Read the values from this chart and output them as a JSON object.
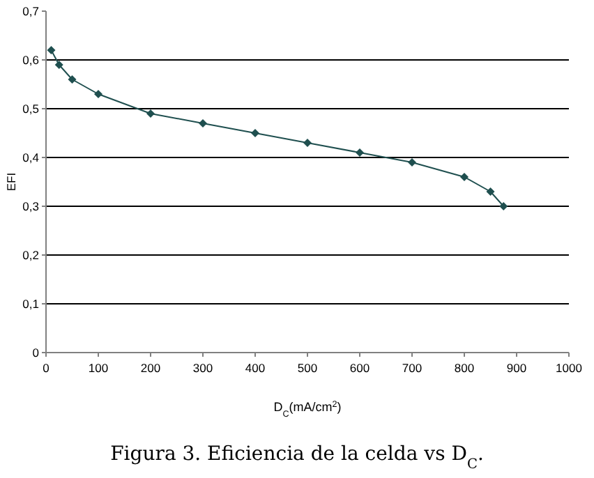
{
  "chart_data": {
    "type": "line",
    "xlabel": "D$_{C}$(mA/cm$^{2}$)",
    "ylabel": "EFI",
    "x": [
      10,
      25,
      50,
      100,
      200,
      300,
      400,
      500,
      600,
      700,
      800,
      850,
      875
    ],
    "series": [
      {
        "color": "#1f4f4f",
        "values": [
          0.62,
          0.59,
          0.56,
          0.53,
          0.49,
          0.47,
          0.45,
          0.43,
          0.41,
          0.39,
          0.36,
          0.33,
          0.3
        ]
      }
    ],
    "xlim": [
      0,
      1000
    ],
    "xticks": [
      0,
      100,
      200,
      300,
      400,
      500,
      600,
      700,
      800,
      900,
      1000
    ],
    "ylim": [
      0,
      0.7
    ],
    "yticks": [
      0,
      {
        "value": 0.1,
        "label": "0,1"
      },
      {
        "value": 0.2,
        "label": "0,2"
      },
      {
        "value": 0.3,
        "label": "0,3"
      },
      {
        "value": 0.4,
        "label": "0,4"
      },
      {
        "value": 0.5,
        "label": "0,5"
      },
      {
        "value": 0.6,
        "label": "0,6"
      },
      {
        "value": 0.7,
        "label": "0,7"
      }
    ],
    "grid": "y",
    "marker": "diamond",
    "line_style": "solid",
    "annotations": [
      "Figura 3. Eficiencia de la celda vs D$_{C}$."
    ]
  }
}
